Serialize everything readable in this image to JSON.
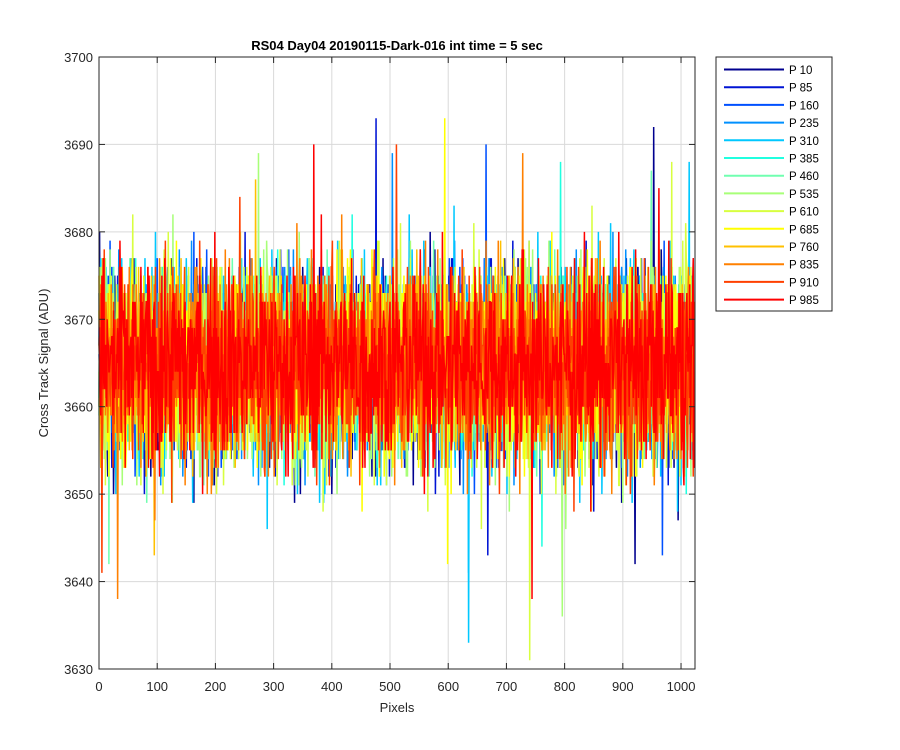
{
  "chart_data": {
    "type": "line",
    "title": "RS04 Day04 20190115-Dark-016 int time = 5 sec",
    "xlabel": "Pixels",
    "ylabel": "Cross Track Signal (ADU)",
    "xlim": [
      0,
      1024
    ],
    "ylim": [
      3630,
      3700
    ],
    "xticks": [
      0,
      100,
      200,
      300,
      400,
      500,
      600,
      700,
      800,
      900,
      1000
    ],
    "yticks": [
      3630,
      3640,
      3650,
      3660,
      3670,
      3680,
      3690,
      3700
    ],
    "grid": true,
    "legend_position": "outside-right-top",
    "series_style": "noisy dark-frame signal, per-pixel samples, mean ≈ 3665 ADU",
    "series": [
      {
        "name": "P 10",
        "color": "#00008f",
        "mean": 3665,
        "min": 3642,
        "max": 3692
      },
      {
        "name": "P 85",
        "color": "#0014d4",
        "mean": 3665,
        "min": 3643,
        "max": 3693
      },
      {
        "name": "P 160",
        "color": "#0050ff",
        "mean": 3665,
        "min": 3643,
        "max": 3690
      },
      {
        "name": "P 235",
        "color": "#0090ff",
        "mean": 3665,
        "min": 3641,
        "max": 3689
      },
      {
        "name": "P 310",
        "color": "#00c8ff",
        "mean": 3665,
        "min": 3633,
        "max": 3688
      },
      {
        "name": "P 385",
        "color": "#20ffe0",
        "mean": 3665,
        "min": 3644,
        "max": 3688
      },
      {
        "name": "P 460",
        "color": "#70ffb0",
        "mean": 3665,
        "min": 3642,
        "max": 3687
      },
      {
        "name": "P 535",
        "color": "#a8ff78",
        "mean": 3665,
        "min": 3636,
        "max": 3689
      },
      {
        "name": "P 610",
        "color": "#d8ff40",
        "mean": 3665,
        "min": 3631,
        "max": 3688
      },
      {
        "name": "P 685",
        "color": "#ffff00",
        "mean": 3665,
        "min": 3642,
        "max": 3693
      },
      {
        "name": "P 760",
        "color": "#ffc000",
        "mean": 3665,
        "min": 3643,
        "max": 3686
      },
      {
        "name": "P 835",
        "color": "#ff8000",
        "mean": 3665,
        "min": 3638,
        "max": 3689
      },
      {
        "name": "P 910",
        "color": "#ff4000",
        "mean": 3665,
        "min": 3641,
        "max": 3690
      },
      {
        "name": "P 985",
        "color": "#ff0000",
        "mean": 3665,
        "min": 3638,
        "max": 3690
      }
    ]
  }
}
